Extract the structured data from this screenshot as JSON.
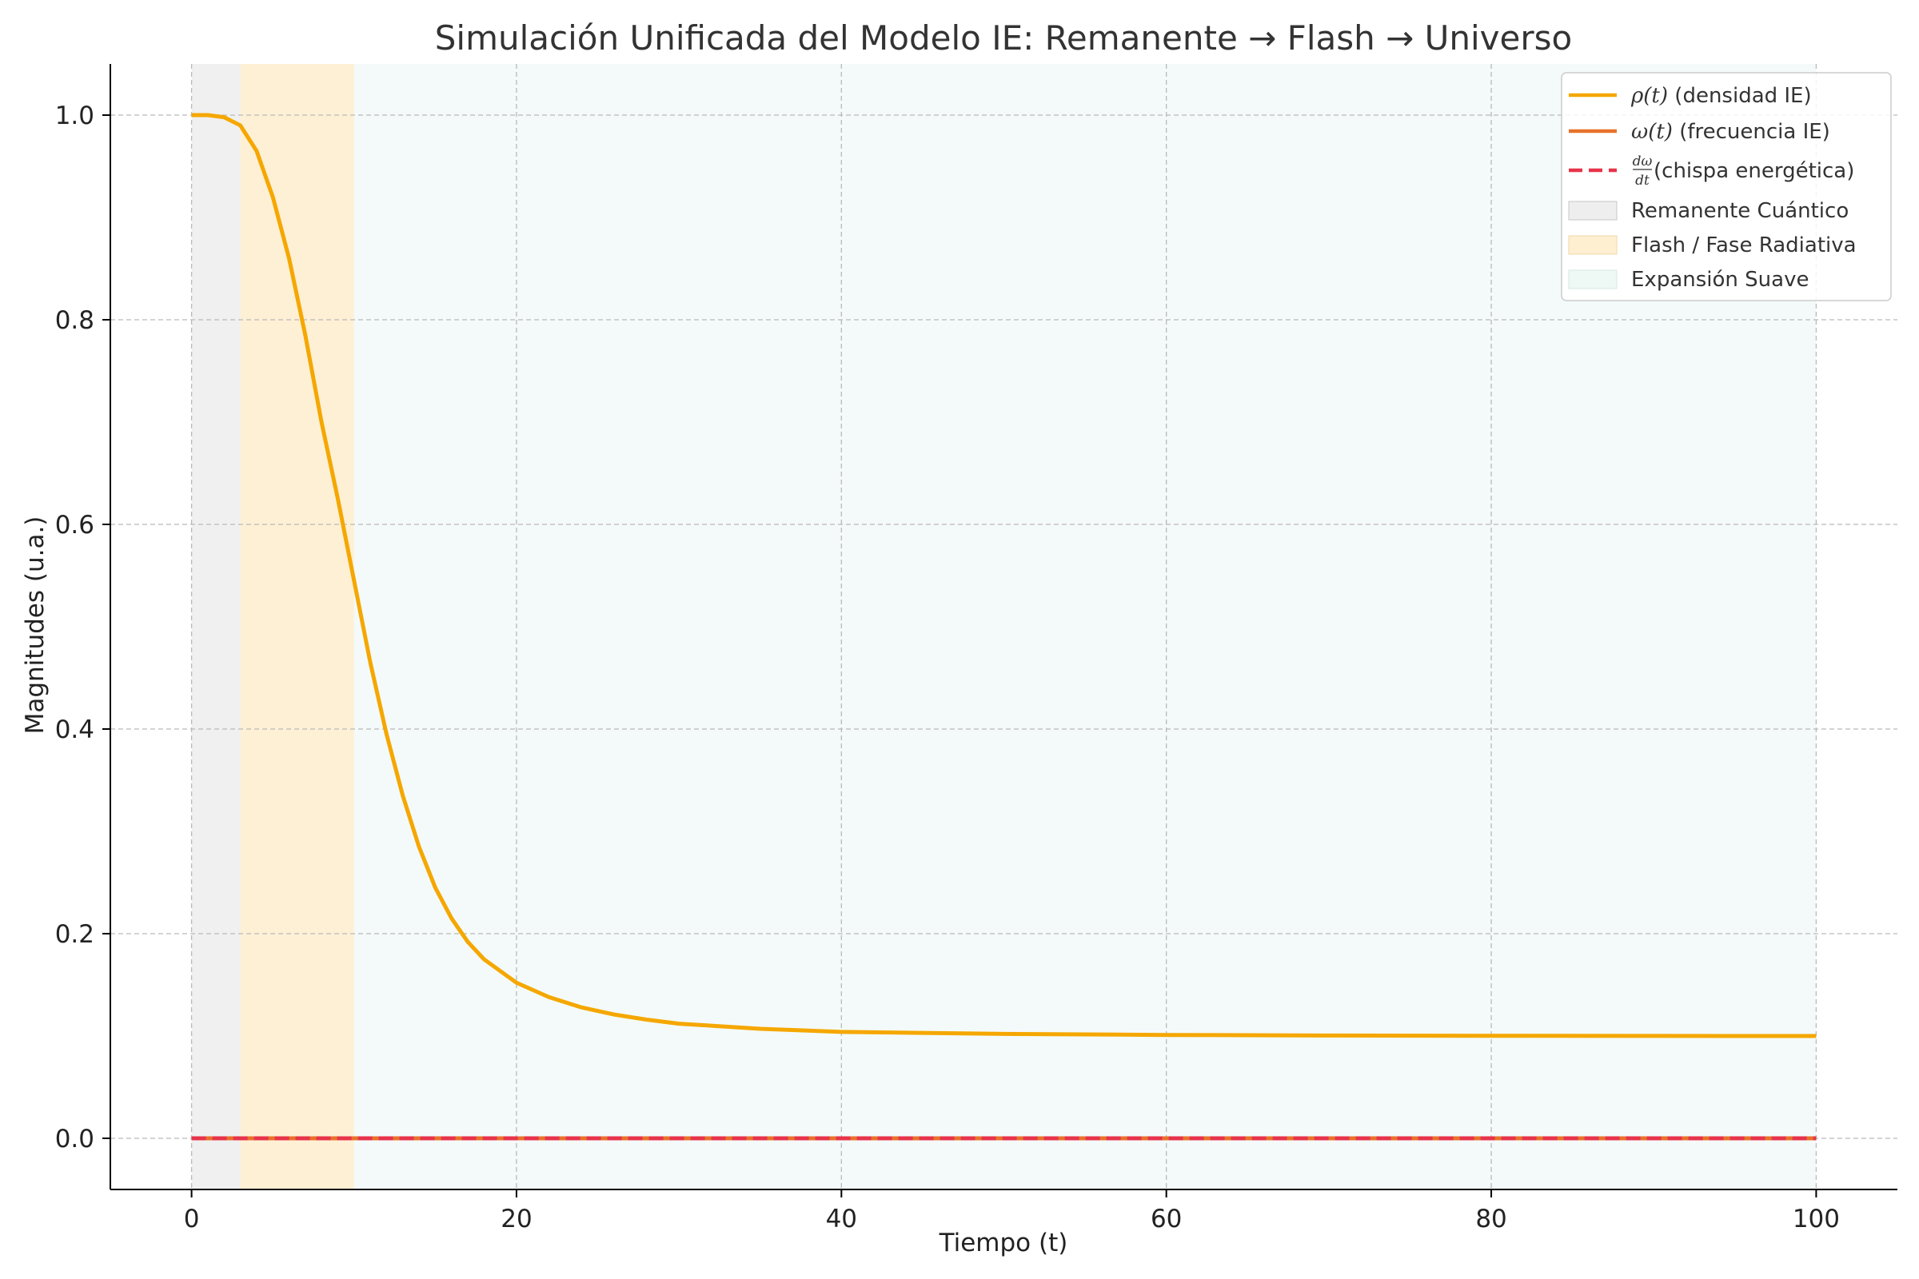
{
  "chart_data": {
    "type": "line",
    "title": "Simulación Unificada del Modelo IE: Remanente → Flash → Universo",
    "xlabel": "Tiempo (t)",
    "ylabel": "Magnitudes (u.a.)",
    "xlim": [
      -5,
      105
    ],
    "ylim": [
      -0.05,
      1.05
    ],
    "xticks": [
      0,
      20,
      40,
      60,
      80,
      100
    ],
    "xtick_labels": [
      "0",
      "20",
      "40",
      "60",
      "80",
      "100"
    ],
    "yticks": [
      0.0,
      0.2,
      0.4,
      0.6,
      0.8,
      1.0
    ],
    "ytick_labels": [
      "0.0",
      "0.2",
      "0.4",
      "0.6",
      "0.8",
      "1.0"
    ],
    "grid": true,
    "legend_position": "top-right",
    "regions": [
      {
        "label": "Remanente Cuántico",
        "x_start": 0,
        "x_end": 3,
        "color": "#d9d9d9"
      },
      {
        "label": "Flash / Fase Radiativa",
        "x_start": 3,
        "x_end": 10,
        "color": "#fde4b2"
      },
      {
        "label": "Expansión Suave",
        "x_start": 10,
        "x_end": 100,
        "color": "#e3f3ef"
      }
    ],
    "series": [
      {
        "name_symbol": "ρ(t)",
        "name_text": " (densidad IE)",
        "color": "#f5a700",
        "style": "solid",
        "x": [
          0,
          1,
          2,
          3,
          4,
          5,
          6,
          7,
          8,
          9,
          10,
          11,
          12,
          13,
          14,
          15,
          16,
          17,
          18,
          20,
          22,
          24,
          26,
          28,
          30,
          35,
          40,
          50,
          60,
          70,
          80,
          90,
          100
        ],
        "y": [
          1.0,
          1.0,
          0.998,
          0.99,
          0.965,
          0.92,
          0.86,
          0.785,
          0.7,
          0.625,
          0.545,
          0.465,
          0.395,
          0.335,
          0.285,
          0.245,
          0.215,
          0.192,
          0.175,
          0.152,
          0.138,
          0.128,
          0.121,
          0.116,
          0.112,
          0.107,
          0.104,
          0.102,
          0.101,
          0.1005,
          0.1002,
          0.1001,
          0.1
        ]
      },
      {
        "name_symbol": "ω(t)",
        "name_text": " (frecuencia IE)",
        "color": "#e8722a",
        "style": "solid",
        "x": [
          0,
          100
        ],
        "y": [
          0,
          0
        ]
      },
      {
        "name_frac_num": "dω",
        "name_frac_den": "dt",
        "name_text": " (chispa energética)",
        "color": "#e8334a",
        "style": "dashed",
        "x": [
          0,
          100
        ],
        "y": [
          0,
          0
        ]
      }
    ]
  }
}
